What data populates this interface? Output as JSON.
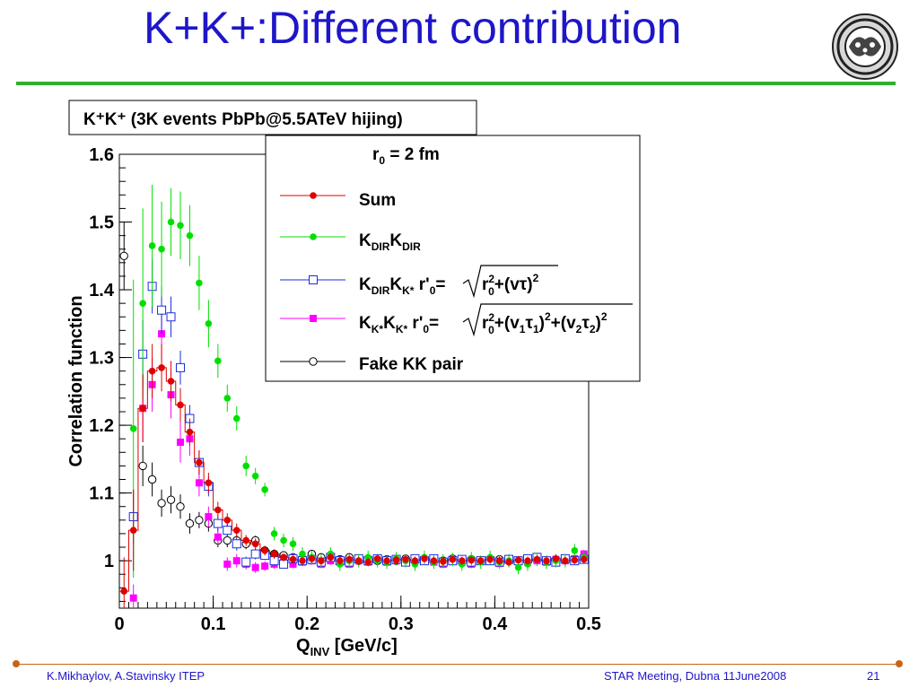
{
  "slide": {
    "title": "K+K+:Different contribution",
    "footer_left": "K.Mikhaylov, A.Stavinsky ITEP",
    "footer_center": "STAR Meeting, Dubna 11June2008",
    "page_number": "21",
    "logo_icon": "institute-emblem-icon",
    "colors": {
      "title": "#1e16c8",
      "rule": "#2fae2f",
      "footer": "#1e16c8",
      "accent": "#c86414"
    }
  },
  "chart_data": {
    "type": "scatter",
    "title": "K⁺K⁺ (3K events PbPb@5.5ATeV hijing)",
    "legend_header": "r₀ = 2 fm",
    "xlabel": "Q_INV [GeV/c]",
    "ylabel": "Correlation function",
    "xlim": [
      0,
      0.5
    ],
    "ylim": [
      0.93,
      1.6
    ],
    "x_ticks": [
      "0",
      "0.1",
      "0.2",
      "0.3",
      "0.4",
      "0.5"
    ],
    "y_ticks": [
      "1",
      "1.1",
      "1.2",
      "1.3",
      "1.4",
      "1.5",
      "1.6"
    ],
    "legend_position": "top-right",
    "grid": false,
    "series": [
      {
        "name": "Sum",
        "color": "#e00000",
        "marker": "filled-circle",
        "x": [
          0.005,
          0.015,
          0.025,
          0.035,
          0.045,
          0.055,
          0.065,
          0.075,
          0.085,
          0.095,
          0.105,
          0.115,
          0.125,
          0.135,
          0.145,
          0.155,
          0.165,
          0.175,
          0.185,
          0.195,
          0.205,
          0.215,
          0.225,
          0.235,
          0.245,
          0.255,
          0.265,
          0.275,
          0.285,
          0.295,
          0.305,
          0.315,
          0.325,
          0.335,
          0.345,
          0.355,
          0.365,
          0.375,
          0.385,
          0.395,
          0.405,
          0.415,
          0.425,
          0.435,
          0.445,
          0.455,
          0.465,
          0.475,
          0.485,
          0.495
        ],
        "y": [
          0.955,
          1.045,
          1.225,
          1.28,
          1.285,
          1.265,
          1.23,
          1.19,
          1.145,
          1.115,
          1.075,
          1.06,
          1.045,
          1.03,
          1.025,
          1.015,
          1.01,
          1.005,
          1.002,
          1.0,
          1.003,
          1.0,
          1.005,
          1.0,
          1.002,
          1.0,
          0.998,
          1.003,
          1.0,
          1.001,
          1.002,
          1.0,
          1.003,
          1.0,
          0.999,
          1.002,
          1.0,
          1.001,
          1.0,
          1.002,
          1.0,
          0.998,
          1.001,
          1.0,
          1.002,
          1.0,
          1.003,
          1.0,
          1.001,
          1.002
        ],
        "err": [
          0.05,
          0.06,
          0.05,
          0.04,
          0.035,
          0.03,
          0.025,
          0.02,
          0.018,
          0.015,
          0.012,
          0.01,
          0.01,
          0.008,
          0.008,
          0.007,
          0.007,
          0.006,
          0.006,
          0.006,
          0.006,
          0.006,
          0.006,
          0.006,
          0.006,
          0.006,
          0.006,
          0.006,
          0.006,
          0.006,
          0.006,
          0.006,
          0.006,
          0.006,
          0.006,
          0.006,
          0.006,
          0.006,
          0.006,
          0.006,
          0.006,
          0.006,
          0.006,
          0.006,
          0.006,
          0.006,
          0.006,
          0.006,
          0.006,
          0.006
        ]
      },
      {
        "name": "K_DIR K_DIR",
        "color": "#00e000",
        "marker": "filled-circle",
        "x": [
          0.015,
          0.025,
          0.035,
          0.045,
          0.055,
          0.065,
          0.075,
          0.085,
          0.095,
          0.105,
          0.115,
          0.125,
          0.135,
          0.145,
          0.155,
          0.165,
          0.175,
          0.185,
          0.195,
          0.205,
          0.215,
          0.225,
          0.235,
          0.245,
          0.255,
          0.265,
          0.275,
          0.285,
          0.295,
          0.305,
          0.315,
          0.325,
          0.335,
          0.345,
          0.355,
          0.365,
          0.375,
          0.385,
          0.395,
          0.405,
          0.415,
          0.425,
          0.435,
          0.445,
          0.455,
          0.465,
          0.475,
          0.485,
          0.495
        ],
        "y": [
          1.195,
          1.38,
          1.465,
          1.46,
          1.5,
          1.495,
          1.48,
          1.41,
          1.35,
          1.295,
          1.24,
          1.21,
          1.14,
          1.125,
          1.105,
          1.04,
          1.03,
          1.025,
          1.01,
          1.005,
          1.0,
          1.01,
          0.995,
          1.0,
          1.0,
          1.005,
          1.0,
          0.998,
          1.003,
          1.0,
          0.995,
          1.005,
          0.998,
          1.0,
          1.002,
          0.995,
          1.003,
          0.998,
          1.005,
          0.998,
          1.0,
          0.99,
          0.995,
          1.002,
          0.998,
          1.0,
          1.0,
          1.015,
          1.005
        ],
        "err": [
          0.22,
          0.14,
          0.09,
          0.07,
          0.05,
          0.05,
          0.045,
          0.04,
          0.035,
          0.025,
          0.02,
          0.018,
          0.015,
          0.012,
          0.01,
          0.01,
          0.01,
          0.01,
          0.01,
          0.01,
          0.01,
          0.01,
          0.01,
          0.01,
          0.01,
          0.01,
          0.01,
          0.01,
          0.01,
          0.01,
          0.01,
          0.01,
          0.01,
          0.01,
          0.01,
          0.01,
          0.01,
          0.01,
          0.01,
          0.01,
          0.01,
          0.01,
          0.01,
          0.01,
          0.01,
          0.01,
          0.01,
          0.01,
          0.01
        ]
      },
      {
        "name": "K_DIR K_K* r'₀=√(r₀²+(vτ)²)",
        "color": "#1a2ee0",
        "marker": "open-square",
        "x": [
          0.015,
          0.025,
          0.035,
          0.045,
          0.055,
          0.065,
          0.075,
          0.085,
          0.095,
          0.105,
          0.115,
          0.125,
          0.135,
          0.145,
          0.155,
          0.165,
          0.175,
          0.185,
          0.195,
          0.205,
          0.215,
          0.225,
          0.235,
          0.245,
          0.255,
          0.265,
          0.275,
          0.285,
          0.295,
          0.305,
          0.315,
          0.325,
          0.335,
          0.345,
          0.355,
          0.365,
          0.375,
          0.385,
          0.395,
          0.405,
          0.415,
          0.425,
          0.435,
          0.445,
          0.455,
          0.465,
          0.475,
          0.485,
          0.495
        ],
        "y": [
          1.065,
          1.305,
          1.405,
          1.37,
          1.36,
          1.285,
          1.21,
          1.145,
          1.11,
          1.055,
          1.045,
          1.025,
          0.998,
          1.01,
          1.008,
          1.0,
          0.995,
          1.003,
          1.0,
          1.002,
          0.998,
          1.005,
          1.0,
          0.998,
          1.003,
          1.0,
          1.003,
          1.0,
          1.002,
          0.998,
          1.003,
          1.0,
          1.003,
          0.998,
          1.0,
          1.002,
          0.998,
          1.0,
          1.0,
          0.998,
          1.002,
          1.0,
          1.003,
          1.005,
          1.0,
          0.998,
          1.003,
          1.0,
          1.002
        ],
        "err": [
          0.04,
          0.05,
          0.04,
          0.035,
          0.03,
          0.025,
          0.02,
          0.018,
          0.015,
          0.012,
          0.01,
          0.01,
          0.008,
          0.008,
          0.007,
          0.007,
          0.006,
          0.006,
          0.006,
          0.006,
          0.006,
          0.006,
          0.006,
          0.006,
          0.006,
          0.006,
          0.006,
          0.006,
          0.006,
          0.006,
          0.006,
          0.006,
          0.006,
          0.006,
          0.006,
          0.006,
          0.006,
          0.006,
          0.006,
          0.006,
          0.006,
          0.006,
          0.006,
          0.006,
          0.006,
          0.006,
          0.006,
          0.006,
          0.006
        ]
      },
      {
        "name": "K_K* K_K* r'₀=√(r₀²+(v₁τ₁)²+(v₂τ₂)²)",
        "color": "#ff00ff",
        "marker": "filled-square",
        "x": [
          0.015,
          0.025,
          0.035,
          0.045,
          0.055,
          0.065,
          0.075,
          0.085,
          0.095,
          0.105,
          0.115,
          0.125,
          0.135,
          0.145,
          0.155,
          0.165,
          0.175,
          0.185,
          0.195,
          0.205,
          0.215,
          0.225,
          0.235,
          0.245,
          0.255,
          0.265,
          0.275,
          0.285,
          0.295,
          0.305,
          0.315,
          0.325,
          0.335,
          0.345,
          0.355,
          0.365,
          0.375,
          0.385,
          0.395,
          0.405,
          0.415,
          0.425,
          0.435,
          0.445,
          0.455,
          0.465,
          0.475,
          0.485,
          0.495
        ],
        "y": [
          0.945,
          1.225,
          1.26,
          1.335,
          1.245,
          1.175,
          1.18,
          1.115,
          1.065,
          1.035,
          0.995,
          1.0,
          0.995,
          0.99,
          0.992,
          0.995,
          0.998,
          0.995,
          0.998,
          1.0,
          0.995,
          1.0,
          0.998,
          0.995,
          1.0,
          0.998,
          1.002,
          0.998,
          1.0,
          0.997,
          1.0,
          1.002,
          0.998,
          0.995,
          1.0,
          0.998,
          0.995,
          1.0,
          1.0,
          0.996,
          1.003,
          1.0,
          0.998,
          1.0,
          0.998,
          1.002,
          1.0,
          1.003,
          1.01
        ],
        "err": [
          0.02,
          0.05,
          0.04,
          0.04,
          0.035,
          0.03,
          0.025,
          0.02,
          0.015,
          0.012,
          0.01,
          0.01,
          0.008,
          0.008,
          0.007,
          0.007,
          0.006,
          0.006,
          0.006,
          0.006,
          0.006,
          0.006,
          0.006,
          0.006,
          0.006,
          0.006,
          0.006,
          0.006,
          0.006,
          0.006,
          0.006,
          0.006,
          0.006,
          0.006,
          0.006,
          0.006,
          0.006,
          0.006,
          0.006,
          0.006,
          0.006,
          0.006,
          0.006,
          0.006,
          0.006,
          0.006,
          0.006,
          0.006,
          0.006
        ]
      },
      {
        "name": "Fake KK pair",
        "color": "#000000",
        "marker": "open-circle",
        "x": [
          0.005,
          0.025,
          0.035,
          0.045,
          0.055,
          0.065,
          0.075,
          0.085,
          0.095,
          0.105,
          0.115,
          0.125,
          0.135,
          0.145,
          0.155,
          0.165,
          0.175,
          0.185,
          0.195,
          0.205,
          0.215,
          0.225,
          0.235,
          0.245,
          0.255,
          0.265,
          0.275,
          0.285,
          0.295,
          0.305,
          0.315,
          0.325,
          0.335,
          0.345,
          0.355,
          0.365,
          0.375,
          0.385,
          0.395,
          0.405,
          0.415,
          0.425,
          0.435,
          0.445,
          0.455,
          0.465,
          0.475,
          0.485,
          0.495
        ],
        "y": [
          1.45,
          1.14,
          1.12,
          1.085,
          1.09,
          1.08,
          1.055,
          1.06,
          1.055,
          1.03,
          1.03,
          1.03,
          1.025,
          1.03,
          1.015,
          1.01,
          1.008,
          1.005,
          1.003,
          1.01,
          1.005,
          1.003,
          1.002,
          1.005,
          1.0,
          1.003,
          1.0,
          1.002,
          1.0,
          1.003,
          1.0,
          1.002,
          1.0,
          1.0,
          1.003,
          1.0,
          1.002,
          1.0,
          1.0,
          1.002,
          1.0,
          1.0,
          1.003,
          1.002,
          1.0,
          1.0,
          1.002,
          1.0,
          1.002
        ],
        "err": [
          0.05,
          0.03,
          0.025,
          0.02,
          0.02,
          0.018,
          0.015,
          0.012,
          0.012,
          0.01,
          0.01,
          0.008,
          0.008,
          0.007,
          0.007,
          0.006,
          0.006,
          0.006,
          0.006,
          0.006,
          0.006,
          0.006,
          0.006,
          0.006,
          0.006,
          0.006,
          0.006,
          0.006,
          0.006,
          0.006,
          0.006,
          0.006,
          0.006,
          0.006,
          0.006,
          0.006,
          0.006,
          0.006,
          0.006,
          0.006,
          0.006,
          0.006,
          0.006,
          0.006,
          0.006,
          0.006,
          0.006,
          0.006,
          0.006
        ]
      }
    ]
  }
}
